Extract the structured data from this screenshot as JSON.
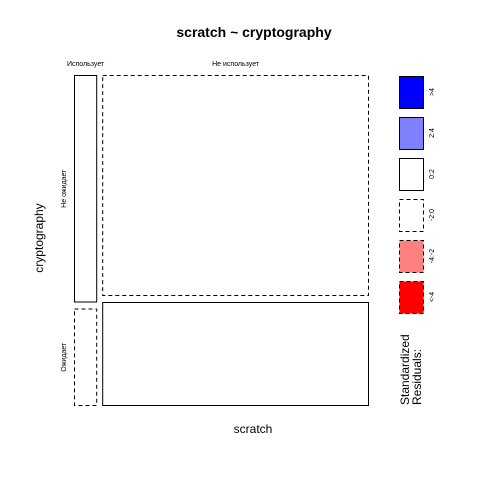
{
  "chart_data": {
    "type": "mosaic",
    "title": "scratch ~ cryptography",
    "xlabel": "scratch",
    "ylabel": "cryptography",
    "x_levels": [
      "Использует",
      "Не использует"
    ],
    "y_levels": [
      "Не ожидает",
      "Ожидает"
    ],
    "cells": [
      {
        "x": "Использует",
        "y": "Не ожидает",
        "proportion_x": 0.08,
        "proportion_y_within_x": 0.7,
        "residual_class": "0:2"
      },
      {
        "x": "Использует",
        "y": "Ожидает",
        "proportion_x": 0.08,
        "proportion_y_within_x": 0.3,
        "residual_class": "-2:0"
      },
      {
        "x": "Не использует",
        "y": "Не ожидает",
        "proportion_x": 0.92,
        "proportion_y_within_x": 0.68,
        "residual_class": "-2:0"
      },
      {
        "x": "Не использует",
        "y": "Ожидает",
        "proportion_x": 0.92,
        "proportion_y_within_x": 0.32,
        "residual_class": "0:2"
      }
    ],
    "legend": {
      "title": "Standardized\nResiduals:",
      "items": [
        {
          "label": ">4",
          "color": "#0000ff",
          "dashed": false
        },
        {
          "label": "2:4",
          "color": "#8080ff",
          "dashed": false
        },
        {
          "label": "0:2",
          "color": "#ffffff",
          "dashed": false
        },
        {
          "label": "-2:0",
          "color": "#ffffff",
          "dashed": true
        },
        {
          "label": "-4:-2",
          "color": "#ff8080",
          "dashed": true
        },
        {
          "label": "<-4",
          "color": "#ff0000",
          "dashed": true
        }
      ]
    }
  }
}
